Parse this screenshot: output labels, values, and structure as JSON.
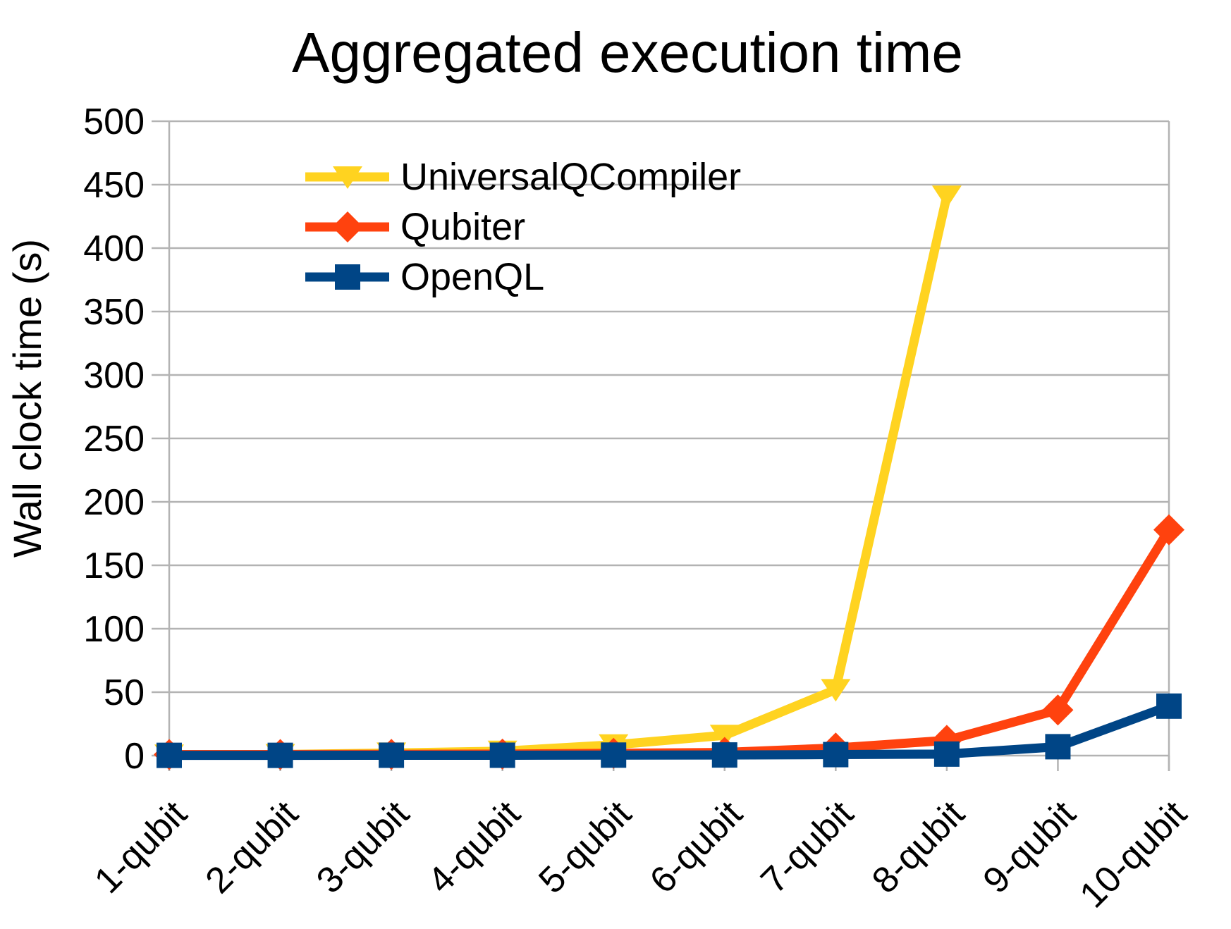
{
  "chart": {
    "title": "Aggregated execution time",
    "y_axis_title": "Wall clock time (s)"
  },
  "chart_data": {
    "type": "line",
    "title": "Aggregated execution time",
    "xlabel": "",
    "ylabel": "Wall clock time (s)",
    "categories": [
      "1-qubit",
      "2-qubit",
      "3-qubit",
      "4-qubit",
      "5-qubit",
      "6-qubit",
      "7-qubit",
      "8-qubit",
      "9-qubit",
      "10-qubit"
    ],
    "ylim": [
      0,
      500
    ],
    "y_tick_step": 50,
    "y_tick_labels": [
      "0",
      "50",
      "100",
      "150",
      "200",
      "250",
      "300",
      "350",
      "400",
      "450",
      "500"
    ],
    "grid": "horizontal",
    "legend_position": "top-left-inside",
    "axis_color": "#b3b3b3",
    "text_color": "#000000",
    "background_color": "#ffffff",
    "series": [
      {
        "name": "UniversalQCompiler",
        "color": "#ffd320",
        "marker": "triangle-down",
        "values": [
          0.4,
          0.8,
          2,
          3.5,
          8.5,
          16,
          52,
          441,
          null,
          null
        ]
      },
      {
        "name": "Qubiter",
        "color": "#ff420e",
        "marker": "diamond",
        "values": [
          0.8,
          0.8,
          1,
          1.2,
          1.8,
          2.5,
          6,
          12,
          36,
          178
        ]
      },
      {
        "name": "OpenQL",
        "color": "#004586",
        "marker": "square",
        "values": [
          0.2,
          0.2,
          0.3,
          0.3,
          0.4,
          0.5,
          0.8,
          1.2,
          7,
          39
        ]
      }
    ]
  }
}
